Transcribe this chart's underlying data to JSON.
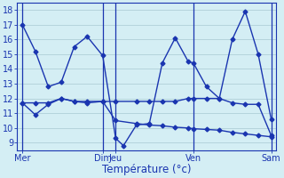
{
  "title": "",
  "xlabel": "Température (°c)",
  "ylabel": "",
  "background_color": "#d4eef4",
  "grid_color": "#b0cfd8",
  "line_color": "#1a35b0",
  "ylim": [
    8.5,
    18.5
  ],
  "yticks": [
    9,
    10,
    11,
    12,
    13,
    14,
    15,
    16,
    17,
    18
  ],
  "xlim": [
    0,
    1.0
  ],
  "xtick_positions": [
    0.02,
    0.33,
    0.38,
    0.68,
    0.98
  ],
  "xtick_labels": [
    "Mer",
    "Dim",
    "Jeu",
    "Ven",
    "Sam"
  ],
  "vline_positions": [
    0.02,
    0.33,
    0.38,
    0.68,
    0.98
  ],
  "line1_pts": [
    [
      0.02,
      17.0
    ],
    [
      0.07,
      15.2
    ],
    [
      0.12,
      12.8
    ],
    [
      0.17,
      13.1
    ],
    [
      0.22,
      15.5
    ],
    [
      0.27,
      16.2
    ],
    [
      0.33,
      14.9
    ],
    [
      0.38,
      9.3
    ],
    [
      0.41,
      8.8
    ],
    [
      0.46,
      10.2
    ],
    [
      0.51,
      10.3
    ],
    [
      0.56,
      14.4
    ],
    [
      0.61,
      16.1
    ],
    [
      0.66,
      14.5
    ],
    [
      0.68,
      14.4
    ],
    [
      0.73,
      12.8
    ],
    [
      0.78,
      12.0
    ],
    [
      0.83,
      16.0
    ],
    [
      0.88,
      17.9
    ],
    [
      0.93,
      15.0
    ],
    [
      0.98,
      10.6
    ]
  ],
  "line2_pts": [
    [
      0.02,
      11.7
    ],
    [
      0.07,
      11.7
    ],
    [
      0.12,
      11.7
    ],
    [
      0.17,
      12.0
    ],
    [
      0.22,
      11.8
    ],
    [
      0.27,
      11.8
    ],
    [
      0.33,
      11.8
    ],
    [
      0.38,
      11.8
    ],
    [
      0.46,
      11.8
    ],
    [
      0.51,
      11.8
    ],
    [
      0.56,
      11.8
    ],
    [
      0.61,
      11.8
    ],
    [
      0.66,
      12.0
    ],
    [
      0.68,
      12.0
    ],
    [
      0.73,
      12.0
    ],
    [
      0.78,
      12.0
    ],
    [
      0.83,
      11.7
    ],
    [
      0.88,
      11.6
    ],
    [
      0.93,
      11.6
    ],
    [
      0.98,
      9.5
    ]
  ],
  "line3_pts": [
    [
      0.02,
      11.7
    ],
    [
      0.07,
      10.9
    ],
    [
      0.12,
      11.6
    ],
    [
      0.17,
      12.0
    ],
    [
      0.22,
      11.8
    ],
    [
      0.27,
      11.7
    ],
    [
      0.33,
      11.8
    ],
    [
      0.38,
      10.5
    ],
    [
      0.46,
      10.3
    ],
    [
      0.51,
      10.2
    ],
    [
      0.56,
      10.15
    ],
    [
      0.61,
      10.05
    ],
    [
      0.66,
      10.0
    ],
    [
      0.68,
      9.95
    ],
    [
      0.73,
      9.9
    ],
    [
      0.78,
      9.85
    ],
    [
      0.83,
      9.7
    ],
    [
      0.88,
      9.6
    ],
    [
      0.93,
      9.5
    ],
    [
      0.98,
      9.4
    ]
  ],
  "marker_size": 2.5,
  "line_width": 1.0
}
